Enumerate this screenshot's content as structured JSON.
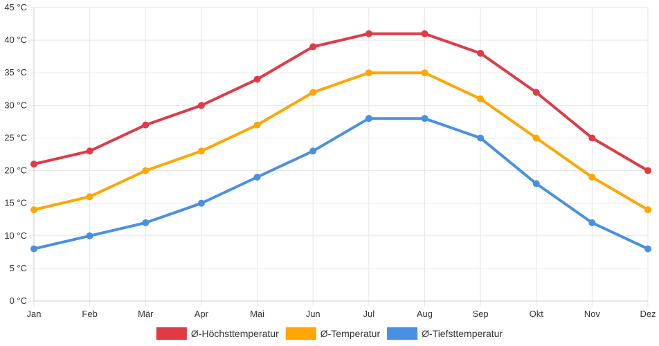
{
  "chart_data": {
    "type": "line",
    "title": "",
    "xlabel": "",
    "ylabel": "",
    "categories": [
      "Jan",
      "Feb",
      "Mär",
      "Apr",
      "Mai",
      "Jun",
      "Jul",
      "Aug",
      "Sep",
      "Okt",
      "Nov",
      "Dez"
    ],
    "ylim": [
      0,
      45
    ],
    "ytick_values": [
      0,
      5,
      10,
      15,
      20,
      25,
      30,
      35,
      40,
      45
    ],
    "ytick_labels": [
      "0 °C",
      "5 °C",
      "10 °C",
      "15 °C",
      "20 °C",
      "25 °C",
      "30 °C",
      "35 °C",
      "40 °C",
      "45 °C"
    ],
    "grid": true,
    "legend_position": "bottom-center",
    "series": [
      {
        "name": "Ø-Höchsttemperatur",
        "color": "#e03a46",
        "values": [
          21,
          23,
          27,
          30,
          34,
          39,
          41,
          41,
          38,
          32,
          25,
          20
        ]
      },
      {
        "name": "Ø-Temperatur",
        "color": "#ffa600",
        "values": [
          14,
          16,
          20,
          23,
          27,
          32,
          35,
          35,
          31,
          25,
          19,
          14
        ]
      },
      {
        "name": "Ø-Tiefsttemperatur",
        "color": "#4a90e2",
        "values": [
          8,
          10,
          12,
          15,
          19,
          23,
          28,
          28,
          25,
          18,
          12,
          8
        ]
      }
    ]
  }
}
